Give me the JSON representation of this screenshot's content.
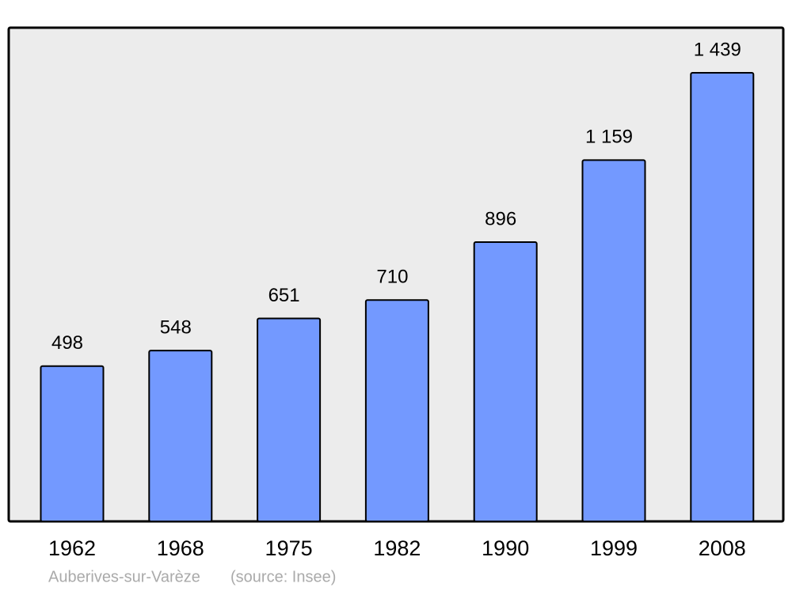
{
  "chart_data": {
    "type": "bar",
    "categories": [
      "1962",
      "1968",
      "1975",
      "1982",
      "1990",
      "1999",
      "2008"
    ],
    "values": [
      498,
      548,
      651,
      710,
      896,
      1159,
      1439
    ],
    "value_labels": [
      "498",
      "548",
      "651",
      "710",
      "896",
      "1 159",
      "1 439"
    ],
    "color": "#7399ff",
    "footer": [
      "Auberives-sur-Varèze",
      "(source: Insee)"
    ]
  }
}
